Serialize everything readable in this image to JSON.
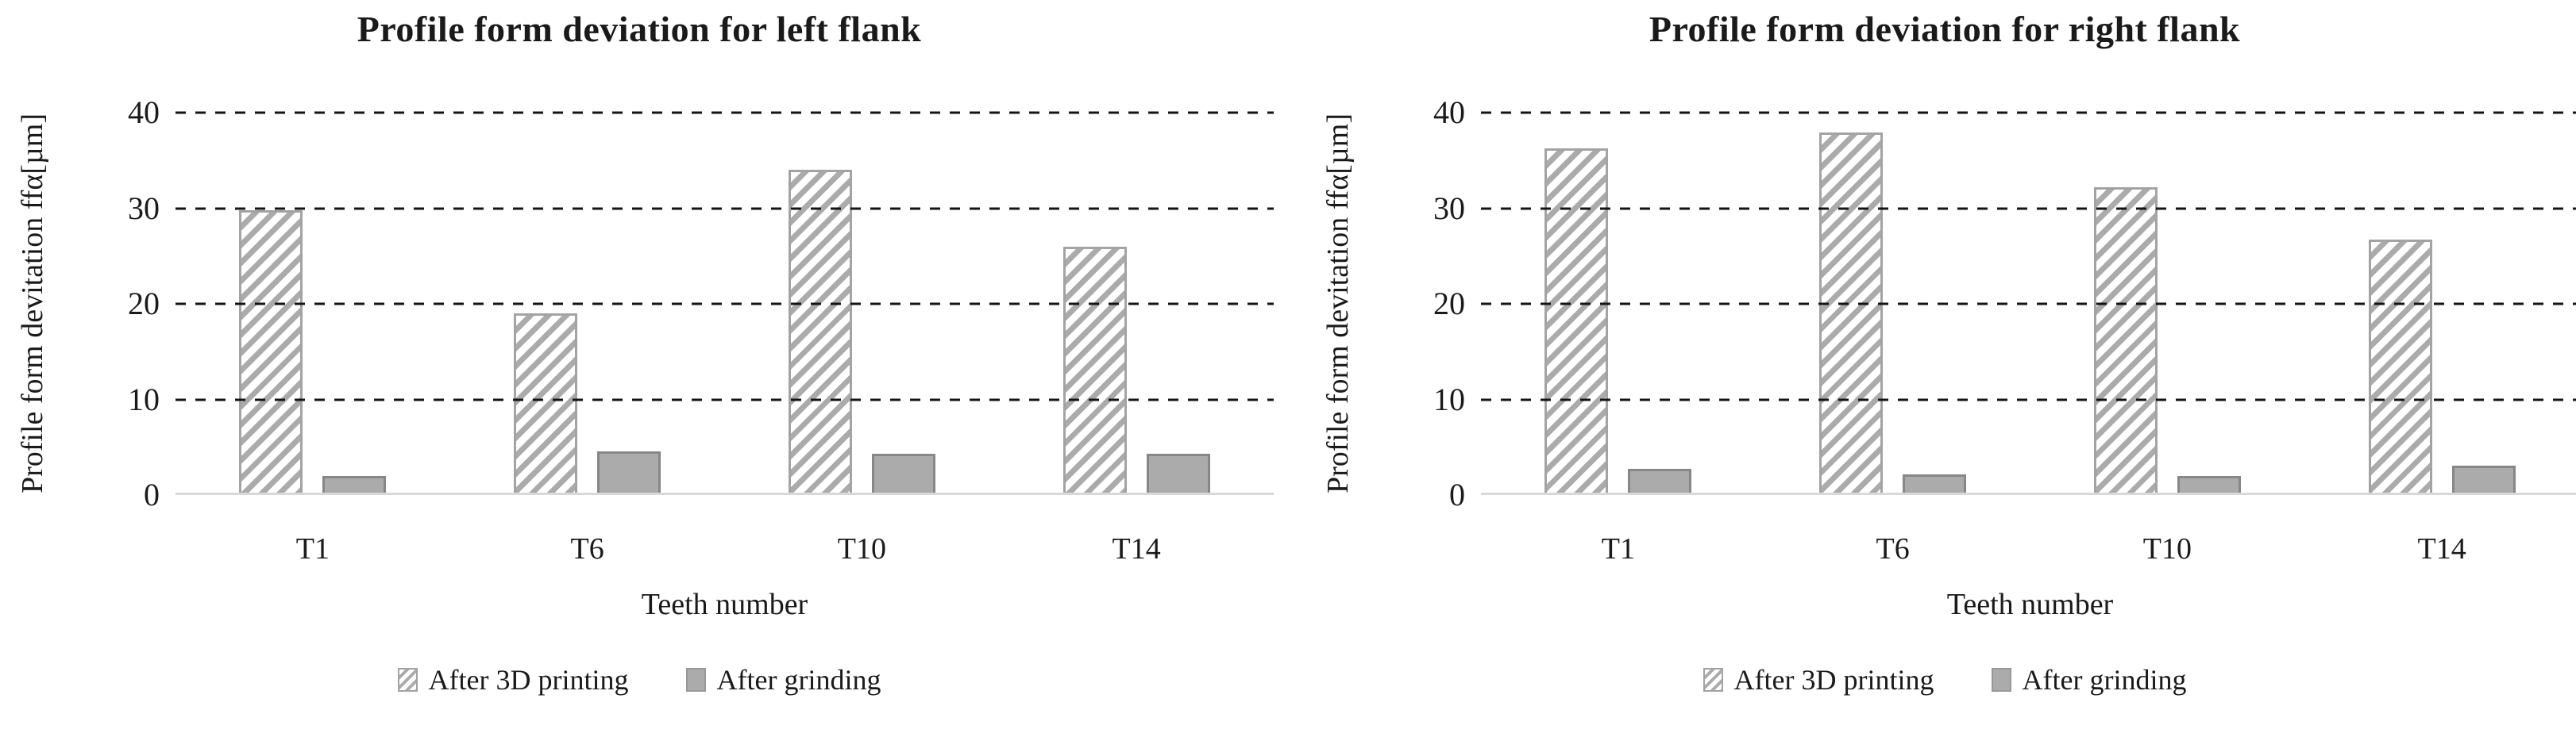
{
  "figure": {
    "background": "#ffffff",
    "panels_count": 2
  },
  "colors": {
    "text": "#1a1a1a",
    "gridline": "#141414",
    "baseline": "#d9d9d9",
    "hatch_stripe": "#ababab",
    "hatch_border": "#a3a3a3",
    "solid_bar_fill": "#ababab",
    "solid_bar_border": "#878787"
  },
  "chart_data": [
    {
      "type": "bar",
      "title": "Profile form deviation for left flank",
      "categories": [
        "T1",
        "T6",
        "T10",
        "T14"
      ],
      "series": [
        {
          "name": "After 3D printing",
          "style": "hatched",
          "values": [
            29.8,
            19,
            34,
            26
          ]
        },
        {
          "name": "After grinding",
          "style": "solid",
          "values": [
            2,
            4.6,
            4.3,
            4.3
          ]
        }
      ],
      "xlabel": "Teeth number",
      "ylabel": "Profile form devitation ffα[µm]",
      "ylim": [
        0,
        40
      ],
      "yticks": [
        0,
        10,
        20,
        30,
        40
      ],
      "grid": "horizontal-dashed",
      "legend_position": "bottom"
    },
    {
      "type": "bar",
      "title": "Profile form deviation for right flank",
      "categories": [
        "T1",
        "T6",
        "T10",
        "T14"
      ],
      "series": [
        {
          "name": "After 3D printing",
          "style": "hatched",
          "values": [
            36.3,
            37.9,
            32.2,
            26.7
          ]
        },
        {
          "name": "After grinding",
          "style": "solid",
          "values": [
            2.7,
            2.2,
            2,
            3.1
          ]
        }
      ],
      "xlabel": "Teeth number",
      "ylabel": "Profile form devitation ffα[µm]",
      "ylim": [
        0,
        40
      ],
      "yticks": [
        0,
        10,
        20,
        30,
        40
      ],
      "grid": "horizontal-dashed",
      "legend_position": "bottom"
    }
  ]
}
